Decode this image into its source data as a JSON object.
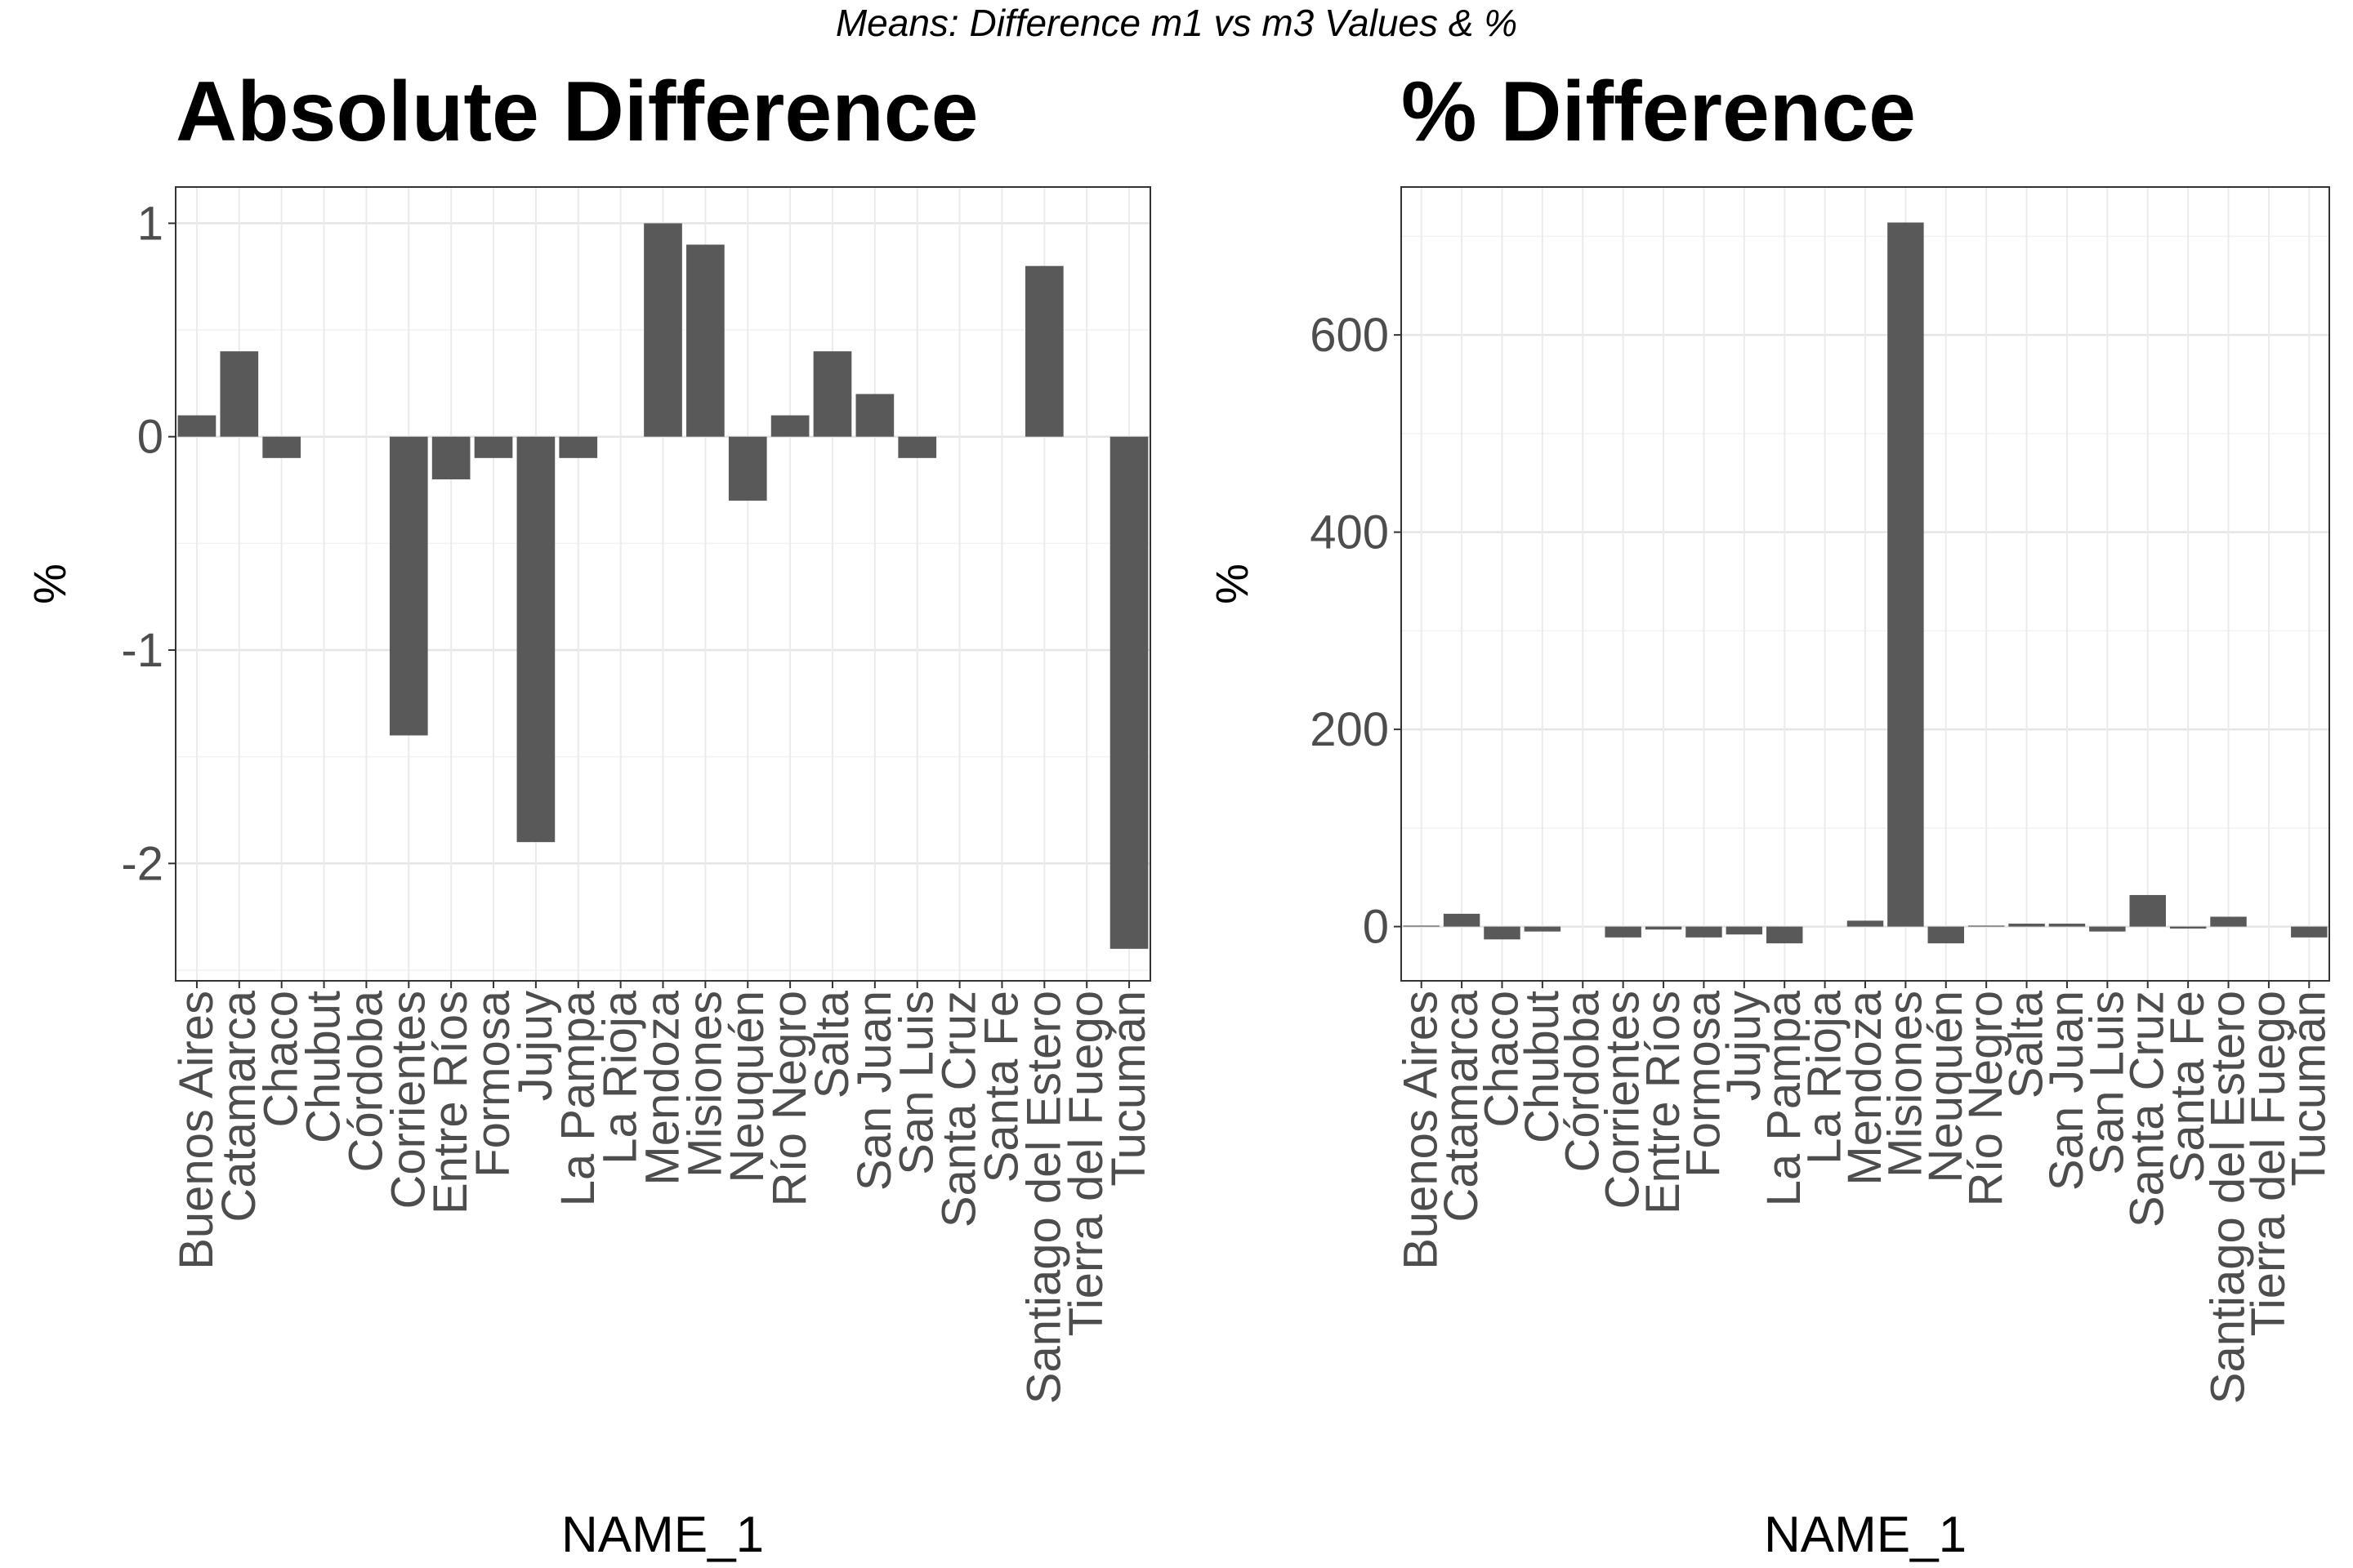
{
  "figure": {
    "suptitle": "Means: Difference m1 vs m3 Values & %"
  },
  "chart_data": [
    {
      "type": "bar",
      "title": "Absolute Difference",
      "xlabel": "NAME_1",
      "ylabel": "%",
      "ylim": [
        -2.55,
        1.17
      ],
      "yticks": [
        1,
        0,
        -1,
        -2
      ],
      "ytick_labels": [
        "1",
        "0",
        "-1",
        "-2"
      ],
      "grid": true,
      "bar_color": "#595959",
      "categories": [
        "Buenos Aires",
        "Catamarca",
        "Chaco",
        "Chubut",
        "Córdoba",
        "Corrientes",
        "Entre Ríos",
        "Formosa",
        "Jujuy",
        "La Pampa",
        "La Rioja",
        "Mendoza",
        "Misiones",
        "Neuquén",
        "Río Negro",
        "Salta",
        "San Juan",
        "San Luis",
        "Santa Cruz",
        "Santa Fe",
        "Santiago del Estero",
        "Tierra del Fuego",
        "Tucumán"
      ],
      "values": [
        0.1,
        0.4,
        -0.1,
        0,
        0,
        -1.4,
        -0.2,
        -0.1,
        -1.9,
        -0.1,
        0,
        1.0,
        0.9,
        -0.3,
        0.1,
        0.4,
        0.2,
        -0.1,
        0,
        0,
        0.8,
        0,
        -2.4
      ]
    },
    {
      "type": "bar",
      "title": "% Difference",
      "xlabel": "NAME_1",
      "ylabel": "%",
      "ylim": [
        -55,
        750
      ],
      "yticks": [
        600,
        400,
        200,
        0
      ],
      "ytick_labels": [
        "600",
        "400",
        "200",
        "0"
      ],
      "grid": true,
      "bar_color": "#595959",
      "categories": [
        "Buenos Aires",
        "Catamarca",
        "Chaco",
        "Chubut",
        "Córdoba",
        "Corrientes",
        "Entre Ríos",
        "Formosa",
        "Jujuy",
        "La Pampa",
        "La Rioja",
        "Mendoza",
        "Misiones",
        "Neuquén",
        "Río Negro",
        "Salta",
        "San Juan",
        "San Luis",
        "Santa Cruz",
        "Santa Fe",
        "Santiago del Estero",
        "Tierra del Fuego",
        "Tucumán"
      ],
      "values": [
        1,
        13,
        -13,
        -5,
        0,
        -11,
        -3,
        -11,
        -8,
        -17,
        0,
        6,
        714,
        -17,
        1,
        3,
        3,
        -5,
        32,
        -2,
        10,
        0,
        -11
      ]
    }
  ]
}
